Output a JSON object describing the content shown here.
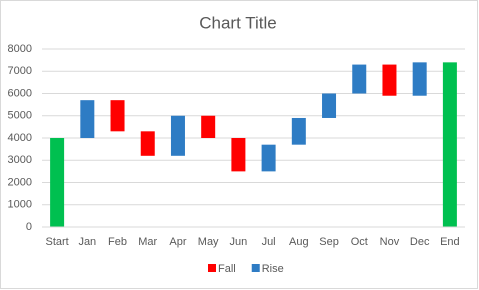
{
  "chart_data": {
    "type": "waterfall",
    "title": "Chart Title",
    "categories": [
      "Start",
      "Jan",
      "Feb",
      "Mar",
      "Apr",
      "May",
      "Jun",
      "Jul",
      "Aug",
      "Sep",
      "Oct",
      "Nov",
      "Dec",
      "End"
    ],
    "totals": [
      4000,
      null,
      null,
      null,
      null,
      null,
      null,
      null,
      null,
      null,
      null,
      null,
      null,
      7400
    ],
    "totals_color": "#00c050",
    "series": [
      {
        "name": "Fall",
        "color": "#ff0000",
        "values": [
          null,
          null,
          1400,
          1100,
          null,
          1000,
          1500,
          null,
          null,
          null,
          null,
          1400,
          null,
          null
        ]
      },
      {
        "name": "Rise",
        "color": "#2e7cc4",
        "values": [
          null,
          1700,
          null,
          null,
          1800,
          null,
          null,
          1200,
          1200,
          1100,
          1300,
          null,
          1500,
          null
        ]
      }
    ],
    "ylim": [
      0,
      8000
    ],
    "yticks": [
      0,
      1000,
      2000,
      3000,
      4000,
      5000,
      6000,
      7000,
      8000
    ],
    "grid": true,
    "legend": "bottom"
  }
}
